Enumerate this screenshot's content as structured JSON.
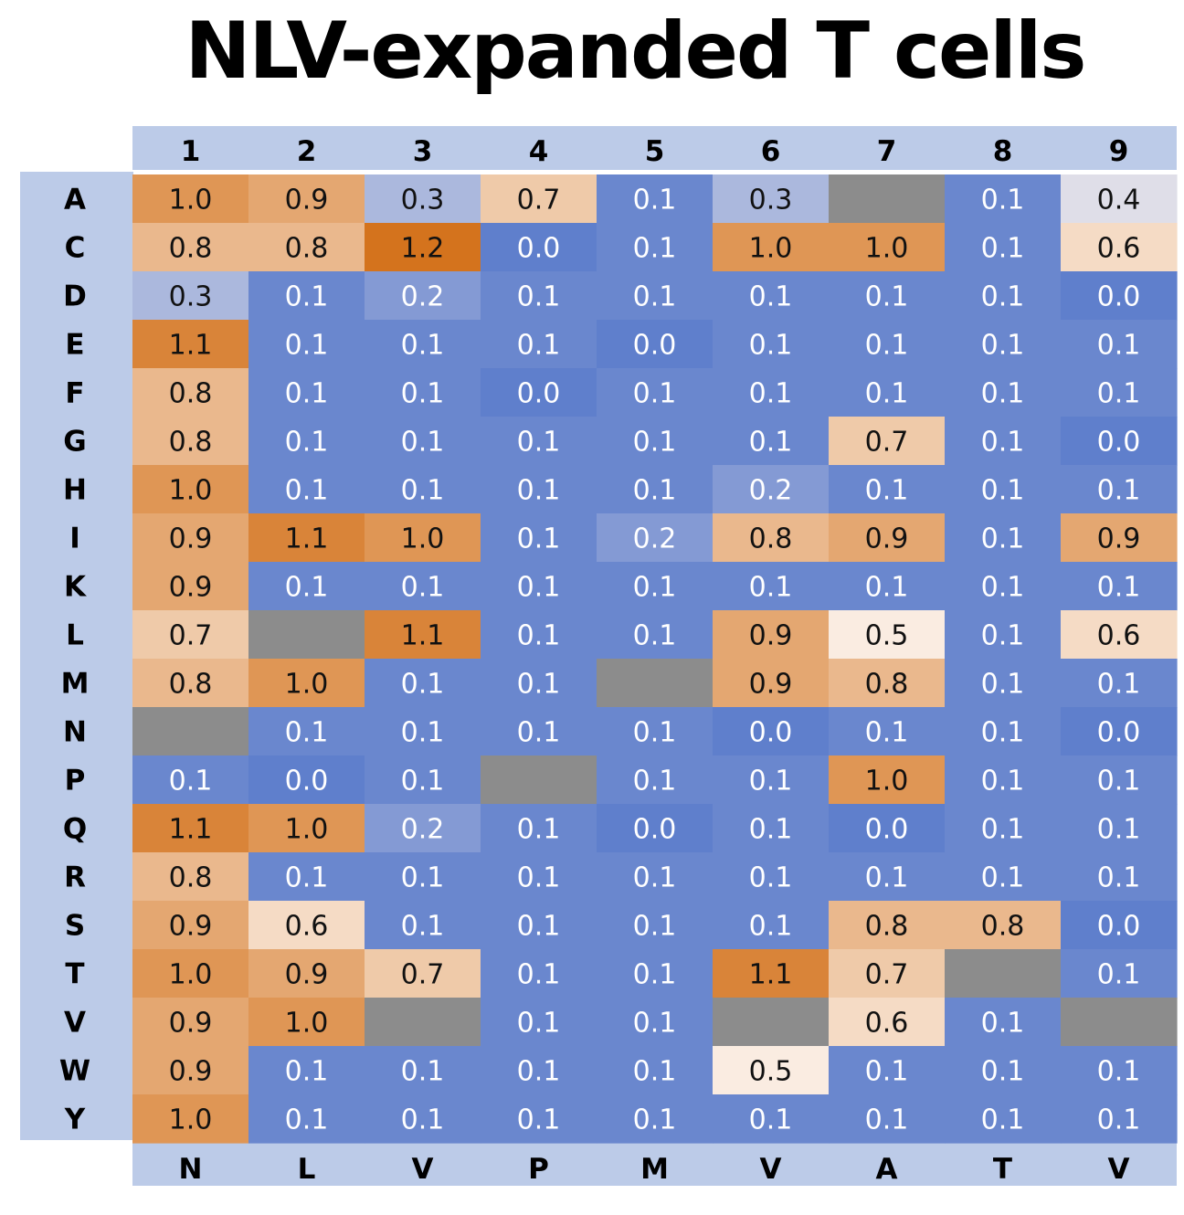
{
  "chart_data": {
    "type": "heatmap",
    "title": "NLV-expanded T cells",
    "x_positions": [
      "1",
      "2",
      "3",
      "4",
      "5",
      "6",
      "7",
      "8",
      "9"
    ],
    "x_residues": [
      "N",
      "L",
      "V",
      "P",
      "M",
      "V",
      "A",
      "T",
      "V"
    ],
    "y_amino_acids": [
      "A",
      "C",
      "D",
      "E",
      "F",
      "G",
      "H",
      "I",
      "K",
      "L",
      "M",
      "N",
      "P",
      "Q",
      "R",
      "S",
      "T",
      "V",
      "W",
      "Y"
    ],
    "values": [
      [
        1.0,
        0.9,
        0.3,
        0.7,
        0.1,
        0.3,
        null,
        0.1,
        0.4
      ],
      [
        0.8,
        0.8,
        1.2,
        0.0,
        0.1,
        1.0,
        1.0,
        0.1,
        0.6
      ],
      [
        0.3,
        0.1,
        0.2,
        0.1,
        0.1,
        0.1,
        0.1,
        0.1,
        0.0
      ],
      [
        1.1,
        0.1,
        0.1,
        0.1,
        0.0,
        0.1,
        0.1,
        0.1,
        0.1
      ],
      [
        0.8,
        0.1,
        0.1,
        0.0,
        0.1,
        0.1,
        0.1,
        0.1,
        0.1
      ],
      [
        0.8,
        0.1,
        0.1,
        0.1,
        0.1,
        0.1,
        0.7,
        0.1,
        0.0
      ],
      [
        1.0,
        0.1,
        0.1,
        0.1,
        0.1,
        0.2,
        0.1,
        0.1,
        0.1
      ],
      [
        0.9,
        1.1,
        1.0,
        0.1,
        0.2,
        0.8,
        0.9,
        0.1,
        0.9
      ],
      [
        0.9,
        0.1,
        0.1,
        0.1,
        0.1,
        0.1,
        0.1,
        0.1,
        0.1
      ],
      [
        0.7,
        null,
        1.1,
        0.1,
        0.1,
        0.9,
        0.5,
        0.1,
        0.6
      ],
      [
        0.8,
        1.0,
        0.1,
        0.1,
        null,
        0.9,
        0.8,
        0.1,
        0.1
      ],
      [
        null,
        0.1,
        0.1,
        0.1,
        0.1,
        0.0,
        0.1,
        0.1,
        0.0
      ],
      [
        0.1,
        0.0,
        0.1,
        null,
        0.1,
        0.1,
        1.0,
        0.1,
        0.1
      ],
      [
        1.1,
        1.0,
        0.2,
        0.1,
        0.0,
        0.1,
        0.0,
        0.1,
        0.1
      ],
      [
        0.8,
        0.1,
        0.1,
        0.1,
        0.1,
        0.1,
        0.1,
        0.1,
        0.1
      ],
      [
        0.9,
        0.6,
        0.1,
        0.1,
        0.1,
        0.1,
        0.8,
        0.8,
        0.0
      ],
      [
        1.0,
        0.9,
        0.7,
        0.1,
        0.1,
        1.1,
        0.7,
        null,
        0.1
      ],
      [
        0.9,
        1.0,
        null,
        0.1,
        0.1,
        null,
        0.6,
        0.1,
        null
      ],
      [
        0.9,
        0.1,
        0.1,
        0.1,
        0.1,
        0.5,
        0.1,
        0.1,
        0.1
      ],
      [
        1.0,
        0.1,
        0.1,
        0.1,
        0.1,
        0.1,
        0.1,
        0.1,
        0.1
      ]
    ],
    "value_range": [
      0.0,
      1.2
    ],
    "missing_color": "#8c8c8c",
    "colors": {
      "low": "#5f7fcc",
      "mid": "#fdf5ef",
      "high": "#d4731d",
      "header_band": "#bccbe8"
    }
  }
}
